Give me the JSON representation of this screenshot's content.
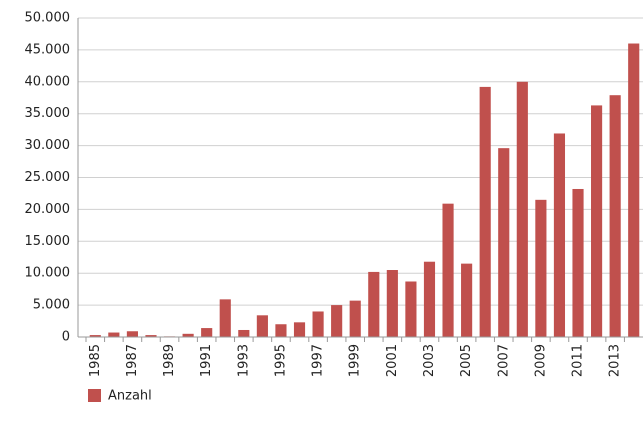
{
  "chart_data": {
    "type": "bar",
    "categories": [
      "1985",
      null,
      "1987",
      null,
      "1989",
      null,
      "1991",
      null,
      "1993",
      null,
      "1995",
      null,
      "1997",
      null,
      "1999",
      null,
      "2001",
      null,
      "2003",
      null,
      "2005",
      null,
      "2007",
      null,
      "2009",
      null,
      "2011",
      null,
      "2013",
      null
    ],
    "series": [
      {
        "name": "Anzahl",
        "color": "#c0504d",
        "values": [
          300,
          700,
          900,
          300,
          100,
          500,
          1400,
          5900,
          1100,
          3400,
          2000,
          2300,
          4000,
          5000,
          5700,
          10200,
          10500,
          8700,
          11800,
          20900,
          11500,
          39200,
          29600,
          40000,
          21500,
          31900,
          23200,
          36300,
          37900,
          46000
        ]
      }
    ],
    "ylim": [
      0,
      50000
    ],
    "yticks": [
      0,
      {
        "value": 5000,
        "label": "5.000"
      },
      {
        "value": 10000,
        "label": "10.000"
      },
      {
        "value": 15000,
        "label": "15.000"
      },
      {
        "value": 20000,
        "label": "20.000"
      },
      {
        "value": 25000,
        "label": "25.000"
      },
      {
        "value": 30000,
        "label": "30.000"
      },
      {
        "value": 35000,
        "label": "35.000"
      },
      {
        "value": 40000,
        "label": "40.000"
      },
      {
        "value": 45000,
        "label": "45.000"
      },
      {
        "value": 50000,
        "label": "50.000"
      }
    ],
    "grid": true,
    "legend": "bottom"
  }
}
